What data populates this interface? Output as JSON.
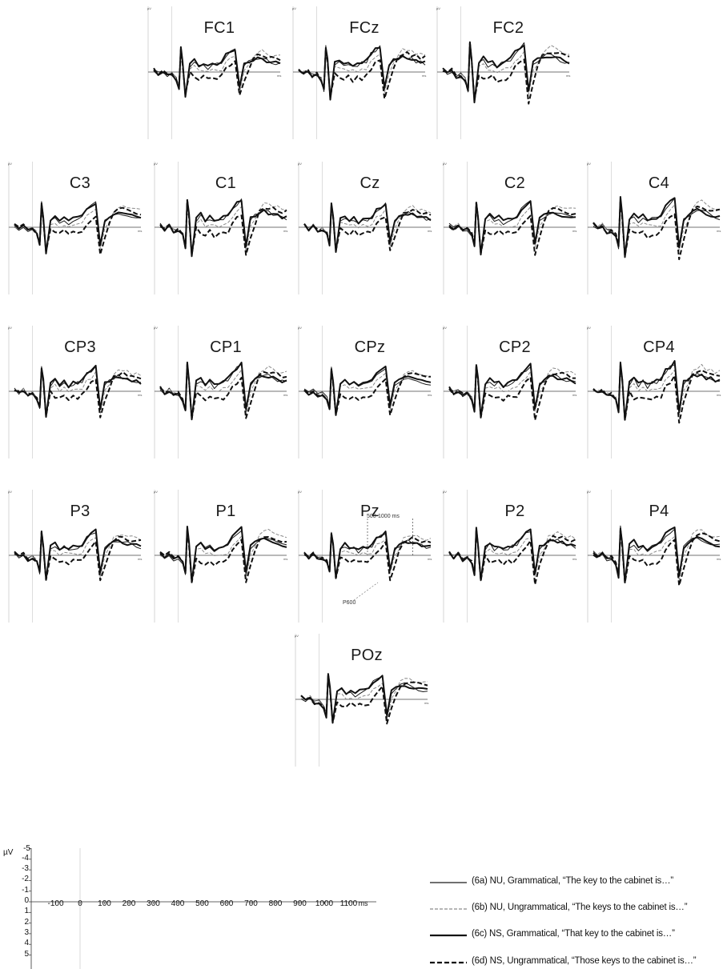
{
  "chart_data": {
    "type": "line",
    "y_unit": "µV",
    "x_unit": "ms",
    "y_axis_inverted": true,
    "xlim": [
      -200,
      1200
    ],
    "ylim": [
      -5,
      5
    ],
    "x_ticks": [
      "-100",
      "0",
      "100",
      "200",
      "300",
      "400",
      "500",
      "600",
      "700",
      "800",
      "900",
      "1000",
      "1100"
    ],
    "y_ticks": [
      "-5",
      "-4",
      "-3",
      "-2",
      "-1",
      "0",
      "1",
      "2",
      "3",
      "4",
      "5"
    ],
    "scale_unit_label": "µV",
    "scale_x_unit_label": "ms",
    "panel_unit_mark": "µV",
    "panel_ms_mark": "ms",
    "series": [
      {
        "id": "6a",
        "name": "(6a) NU, Grammatical, “The key to the cabinet is…”",
        "color": "#1a1a1a",
        "style": "thin-solid"
      },
      {
        "id": "6b",
        "name": "(6b) NU, Ungrammatical, “The keys to the cabinet is…”",
        "color": "#8a8a8a",
        "style": "thin-dashed"
      },
      {
        "id": "6c",
        "name": "(6c) NS, Grammatical, “That key to the cabinet is…”",
        "color": "#111111",
        "style": "thick-solid"
      },
      {
        "id": "6d",
        "name": "(6d) NS, Ungrammatical, “Those keys to the cabinet is…”",
        "color": "#111111",
        "style": "thick-dashed"
      }
    ],
    "waveform_template": {
      "x": [
        -200,
        -150,
        -100,
        -50,
        0,
        50,
        80,
        100,
        120,
        150,
        200,
        250,
        300,
        350,
        400,
        450,
        500,
        550,
        600,
        650,
        700,
        750,
        800,
        850,
        900,
        950,
        1000,
        1050,
        1100,
        1150,
        1200
      ],
      "values_6a": [
        -0.3,
        0.2,
        -0.2,
        0.5,
        0.3,
        1.0,
        2.5,
        -3.5,
        -1.5,
        3.5,
        -1.0,
        -1.5,
        -0.8,
        -1.2,
        -0.6,
        -1.0,
        -1.2,
        -1.5,
        -2.5,
        -3.0,
        -3.5,
        2.5,
        -1.0,
        -1.5,
        -2.0,
        -2.2,
        -2.0,
        -1.8,
        -1.5,
        -1.3,
        -1.2
      ],
      "values_6b": [
        -0.2,
        0.1,
        -0.3,
        0.4,
        0.2,
        0.9,
        2.3,
        -3.3,
        -1.4,
        3.3,
        -0.6,
        -0.8,
        -0.2,
        -0.4,
        -0.1,
        -0.2,
        -0.3,
        -0.4,
        -1.5,
        -2.0,
        -2.6,
        3.0,
        0.0,
        -1.0,
        -2.5,
        -3.0,
        -3.2,
        -2.8,
        -2.6,
        -2.5,
        -2.4
      ],
      "values_6c": [
        -0.4,
        0.3,
        -0.1,
        0.6,
        0.4,
        1.1,
        2.6,
        -3.6,
        -1.6,
        3.6,
        -1.2,
        -1.8,
        -1.0,
        -1.4,
        -0.8,
        -1.2,
        -1.3,
        -1.6,
        -2.6,
        -3.1,
        -3.6,
        2.4,
        -1.1,
        -1.6,
        -1.9,
        -2.1,
        -1.9,
        -1.7,
        -1.6,
        -1.4,
        -1.3
      ],
      "values_6d": [
        -0.3,
        0.2,
        -0.2,
        0.5,
        0.3,
        1.0,
        2.4,
        -3.4,
        -1.3,
        3.4,
        0.2,
        0.8,
        1.0,
        0.6,
        1.2,
        0.8,
        0.9,
        0.6,
        -0.5,
        -1.2,
        -1.8,
        3.8,
        1.5,
        -0.5,
        -2.0,
        -2.5,
        -2.6,
        -2.4,
        -2.2,
        -2.0,
        -2.0
      ]
    },
    "panels": [
      {
        "label": "FC1"
      },
      {
        "label": "FCz"
      },
      {
        "label": "FC2"
      },
      {
        "label": "C3"
      },
      {
        "label": "C1"
      },
      {
        "label": "Cz"
      },
      {
        "label": "C2"
      },
      {
        "label": "C4"
      },
      {
        "label": "CP3"
      },
      {
        "label": "CP1"
      },
      {
        "label": "CPz"
      },
      {
        "label": "CP2"
      },
      {
        "label": "CP4"
      },
      {
        "label": "P3"
      },
      {
        "label": "P1"
      },
      {
        "label": "Pz"
      },
      {
        "label": "P2"
      },
      {
        "label": "P4"
      },
      {
        "label": "POz"
      }
    ],
    "annotations": {
      "window": "500-1000 ms",
      "component": "P600"
    }
  }
}
